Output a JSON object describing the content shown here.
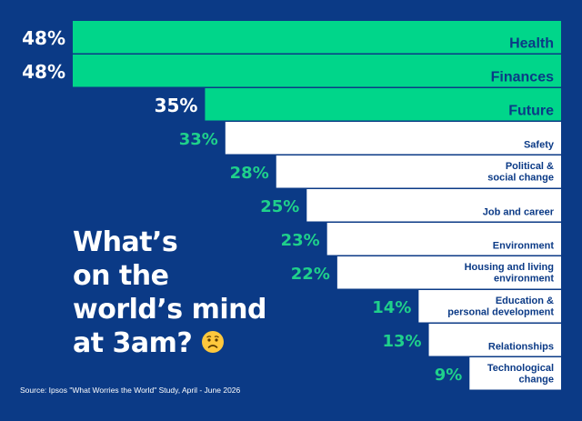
{
  "headline": {
    "line1": "What’s",
    "line2": "on the",
    "line3": "world’s mind",
    "line4": "at 3am?",
    "emoji_icon": "worried-face-icon"
  },
  "source": "Source: Ipsos \"What Worries the World\" Study, April - June 2026",
  "colors": {
    "background": "#0b3a86",
    "highlight_bar": "#00d68a",
    "plain_bar": "#ffffff",
    "label_text": "#0b3a86",
    "highlight_value": "#ffffff",
    "plain_value": "#1fd08b"
  },
  "chart_data": {
    "type": "bar",
    "orientation": "horizontal",
    "xlim": [
      0,
      100
    ],
    "categories": [
      "Health",
      "Finances",
      "Future",
      "Safety",
      "Political & social change",
      "Job and career",
      "Environment",
      "Housing and living environment",
      "Education & personal development",
      "Relationships",
      "Technological change"
    ],
    "label_lines": [
      [
        "Health"
      ],
      [
        "Finances"
      ],
      [
        "Future"
      ],
      [
        "Safety"
      ],
      [
        "Political &",
        "social change"
      ],
      [
        "Job and career"
      ],
      [
        "Environment"
      ],
      [
        "Housing and living",
        "environment"
      ],
      [
        "Education &",
        "personal development"
      ],
      [
        "Relationships"
      ],
      [
        "Technological",
        "change"
      ]
    ],
    "values": [
      48,
      48,
      35,
      33,
      28,
      25,
      23,
      22,
      14,
      13,
      9
    ],
    "value_labels": [
      "48%",
      "48%",
      "35%",
      "33%",
      "28%",
      "25%",
      "23%",
      "22%",
      "14%",
      "13%",
      "9%"
    ],
    "highlighted": [
      true,
      true,
      true,
      false,
      false,
      false,
      false,
      false,
      false,
      false,
      false
    ]
  }
}
